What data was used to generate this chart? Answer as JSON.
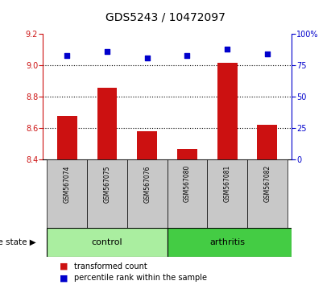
{
  "title": "GDS5243 / 10472097",
  "samples": [
    "GSM567074",
    "GSM567075",
    "GSM567076",
    "GSM567080",
    "GSM567081",
    "GSM567082"
  ],
  "groups": [
    "control",
    "control",
    "control",
    "arthritis",
    "arthritis",
    "arthritis"
  ],
  "bar_values": [
    8.68,
    8.86,
    8.58,
    8.47,
    9.02,
    8.62
  ],
  "dot_values": [
    83,
    86,
    81,
    83,
    88,
    84
  ],
  "ylim_left": [
    8.4,
    9.2
  ],
  "ylim_right": [
    0,
    100
  ],
  "yticks_left": [
    8.4,
    8.6,
    8.8,
    9.0,
    9.2
  ],
  "yticks_right": [
    0,
    25,
    50,
    75,
    100
  ],
  "bar_color": "#CC1111",
  "dot_color": "#0000CC",
  "bar_bottom": 8.4,
  "grid_lines": [
    8.6,
    8.8,
    9.0
  ],
  "control_color": "#AAEEA0",
  "arthritis_color": "#44CC44",
  "label_area_color": "#C8C8C8",
  "legend_bar_label": "transformed count",
  "legend_dot_label": "percentile rank within the sample",
  "figsize": [
    4.11,
    3.54
  ],
  "dpi": 100
}
